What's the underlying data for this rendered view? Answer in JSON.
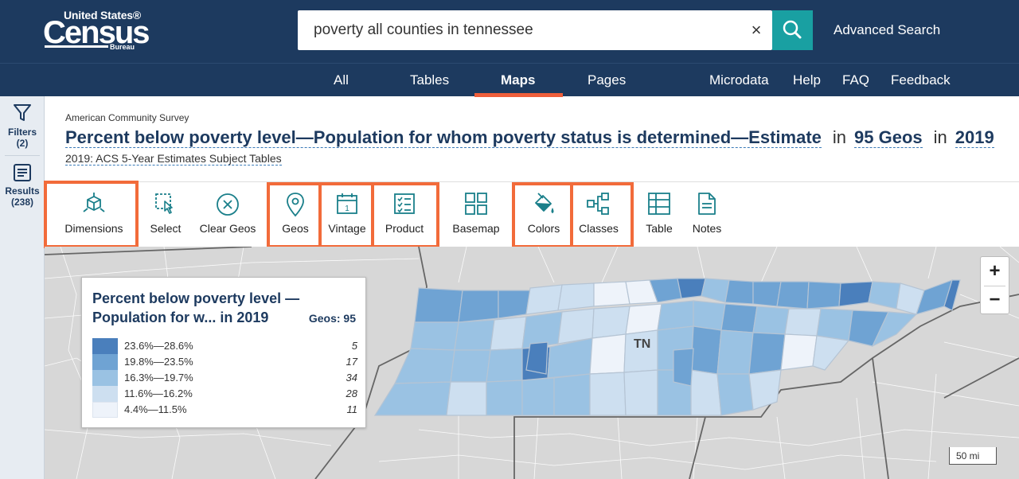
{
  "header": {
    "logo": {
      "line1": "United States®",
      "line2": "Census",
      "line3": "Bureau"
    },
    "search": {
      "value": "poverty all counties in tennessee",
      "clear_symbol": "×"
    },
    "advanced_search": "Advanced Search"
  },
  "nav": {
    "items": [
      "All",
      "Tables",
      "Maps",
      "Pages",
      "Microdata",
      "Help",
      "FAQ",
      "Feedback"
    ],
    "active": "Maps"
  },
  "rail": {
    "filters": {
      "label": "Filters",
      "count": "(2)"
    },
    "results": {
      "label": "Results",
      "count": "(238)"
    }
  },
  "page": {
    "survey": "American Community Survey",
    "title": "Percent below poverty level—Population for whom poverty status is determined—Estimate",
    "in1": "in",
    "geos": "95 Geos",
    "in2": "in",
    "year": "2019",
    "subtitle": "2019: ACS 5-Year Estimates Subject Tables"
  },
  "toolbar": {
    "dimensions": "Dimensions",
    "select": "Select",
    "clear_geos": "Clear Geos",
    "geos": "Geos",
    "vintage": "Vintage",
    "product": "Product",
    "basemap": "Basemap",
    "colors": "Colors",
    "classes": "Classes",
    "table": "Table",
    "notes": "Notes",
    "vintage_day": "1"
  },
  "legend": {
    "title": "Percent below poverty level —Population for w... in 2019",
    "geos": "Geos: 95",
    "rows": [
      {
        "range": "23.6%—28.6%",
        "count": "5",
        "color": "#4a7fbc"
      },
      {
        "range": "19.8%—23.5%",
        "count": "17",
        "color": "#6fa3d3"
      },
      {
        "range": "16.3%—19.7%",
        "count": "34",
        "color": "#9ac2e3"
      },
      {
        "range": "11.6%—16.2%",
        "count": "28",
        "color": "#cddff0"
      },
      {
        "range": "4.4%—11.5%",
        "count": "11",
        "color": "#eef3fa"
      }
    ]
  },
  "map": {
    "state_label": "TN",
    "zoom_in": "+",
    "zoom_out": "−",
    "scale": "50 mi"
  },
  "colors": {
    "header_bg": "#1d3a5f",
    "accent": "#19a0a2",
    "highlight": "#f26b3a",
    "nav_underline": "#ee5e3a"
  }
}
